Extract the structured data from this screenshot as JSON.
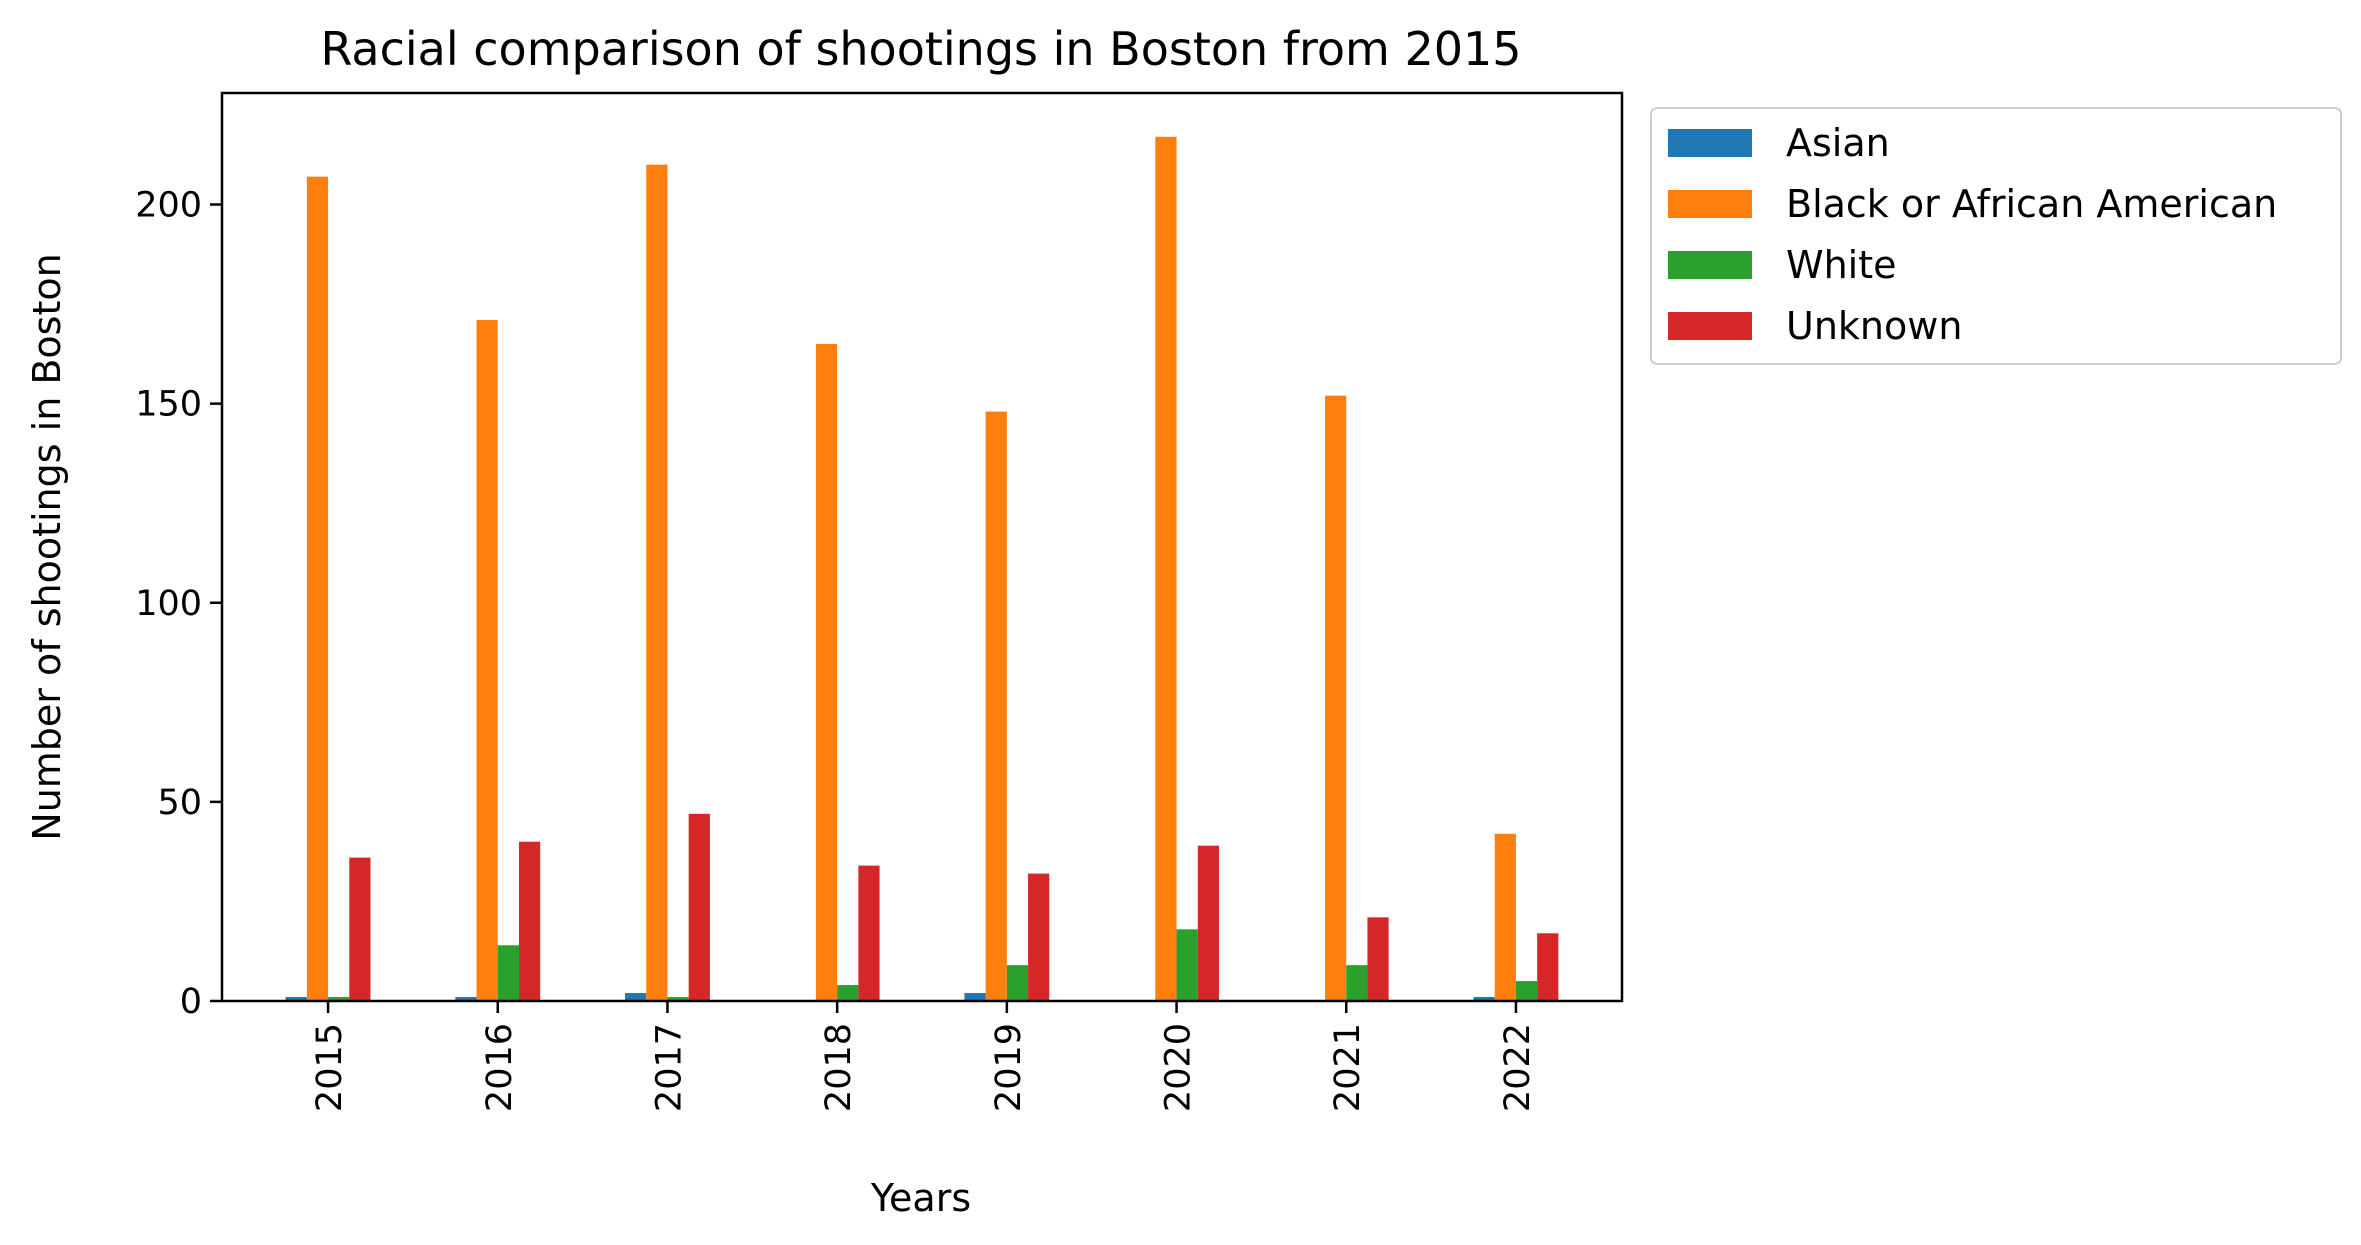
{
  "chart_data": {
    "type": "bar",
    "title": "Racial comparison of shootings in Boston from 2015",
    "xlabel": "Years",
    "ylabel": "Number of shootings in Boston",
    "categories": [
      "2015",
      "2016",
      "2017",
      "2018",
      "2019",
      "2020",
      "2021",
      "2022"
    ],
    "series": [
      {
        "name": "Asian",
        "color": "#1f77b4",
        "values": [
          1,
          1,
          2,
          0,
          2,
          0,
          0,
          1
        ]
      },
      {
        "name": "Black or African American",
        "color": "#ff7f0e",
        "values": [
          207,
          171,
          210,
          165,
          148,
          217,
          152,
          42
        ]
      },
      {
        "name": "White",
        "color": "#2ca02c",
        "values": [
          1,
          14,
          1,
          4,
          9,
          18,
          9,
          5
        ]
      },
      {
        "name": "Unknown",
        "color": "#d62728",
        "values": [
          36,
          40,
          47,
          34,
          32,
          39,
          21,
          17
        ]
      }
    ],
    "ylim": [
      0,
      228
    ],
    "yticks": [
      0,
      50,
      100,
      150,
      200
    ],
    "grid": false,
    "legend_position": "outside upper right"
  }
}
